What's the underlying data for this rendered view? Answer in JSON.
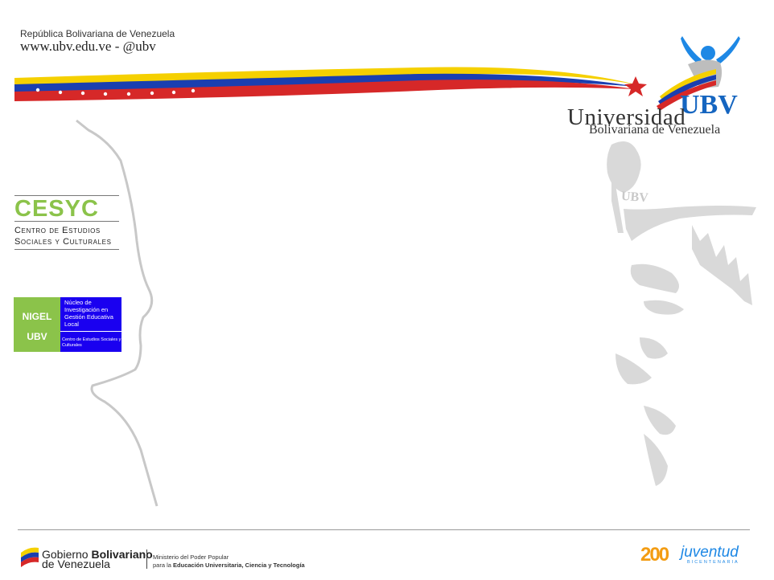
{
  "header": {
    "line1": "República Bolivariana de Venezuela",
    "line2": "www.ubv.edu.ve - @ubv"
  },
  "logo": {
    "word": "Universidad",
    "acronym": "UBV",
    "subtitle": "Bolivariana de Venezuela",
    "watermark": "UBV"
  },
  "cesyc": {
    "title": "CESYC",
    "line1": "Centro de  Estudios",
    "line2": "Sociales y Culturales"
  },
  "nigel": {
    "name": "NIGEL",
    "sub": "UBV",
    "description": "Núcleo de Investigación en Gestión Educativa Local",
    "centro": "Centro de Estudios Sociales y Culturales"
  },
  "footer": {
    "gob_word": "Gobierno ",
    "gob_bold": "Bolivariano",
    "gob_line2": "de Venezuela",
    "ministry_line1": "Ministerio del Poder Popular",
    "ministry_line2_prefix": "para la ",
    "ministry_line2_bold": "Educación Universitaria, Ciencia y Tecnología",
    "bicentennial_number": "200",
    "bicentennial_word": "juventud",
    "bicentennial_sub": "BICENTENARIA"
  },
  "colors": {
    "yellow": "#f5d000",
    "blue": "#1a3fb0",
    "red": "#d62828",
    "green": "#8bc34a",
    "nigel_blue": "#1a00f0",
    "ubv_blue": "#1565c0"
  }
}
